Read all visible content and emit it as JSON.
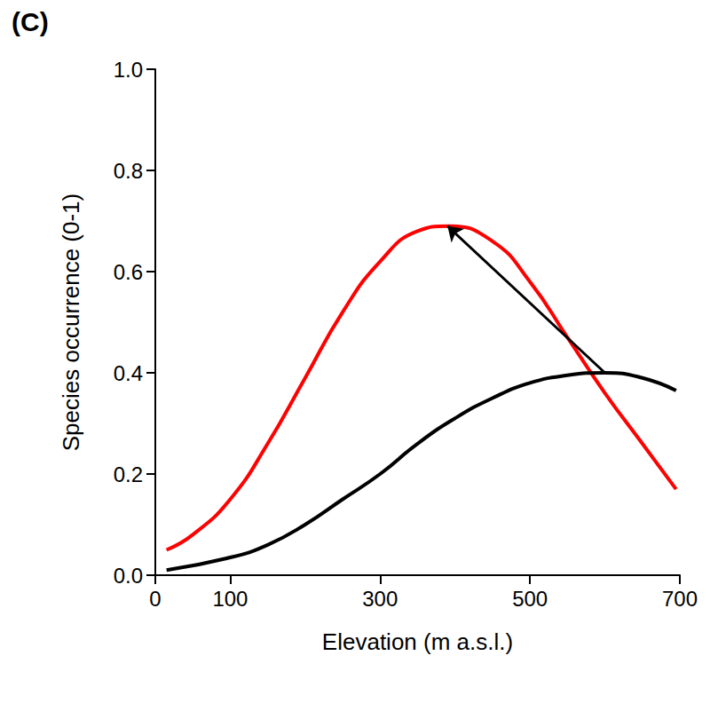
{
  "chart_data": {
    "type": "line",
    "panel_label": "(C)",
    "x_label": "Elevation (m a.s.l.)",
    "y_label": "Species occurrence (0-1)",
    "xlim": [
      0,
      700
    ],
    "xticks": [
      0,
      100,
      300,
      500,
      700
    ],
    "ylim": [
      0,
      1.0
    ],
    "yticks": [
      {
        "value": 0,
        "label": "0.0"
      },
      {
        "value": 0.2,
        "label": "0.2"
      },
      {
        "value": 0.4,
        "label": "0.4"
      },
      {
        "value": 0.6,
        "label": "0.6"
      },
      {
        "value": 0.8,
        "label": "0.8"
      },
      {
        "value": 1.0,
        "label": "1.0"
      }
    ],
    "grid": false,
    "series": [
      {
        "color": "#ff0000",
        "line_style": "solid",
        "x": [
          15,
          50,
          100,
          150,
          200,
          250,
          300,
          350,
          390,
          450,
          500,
          550,
          600,
          650,
          695
        ],
        "values": [
          0.05,
          0.08,
          0.15,
          0.26,
          0.39,
          0.52,
          0.62,
          0.68,
          0.69,
          0.66,
          0.58,
          0.47,
          0.36,
          0.26,
          0.17
        ]
      },
      {
        "color": "#000000",
        "line_style": "solid",
        "x": [
          15,
          100,
          150,
          200,
          250,
          300,
          350,
          400,
          450,
          500,
          550,
          600,
          650,
          695
        ],
        "values": [
          0.01,
          0.035,
          0.06,
          0.1,
          0.15,
          0.2,
          0.26,
          0.31,
          0.35,
          0.38,
          0.395,
          0.4,
          0.39,
          0.365
        ]
      }
    ]
  }
}
